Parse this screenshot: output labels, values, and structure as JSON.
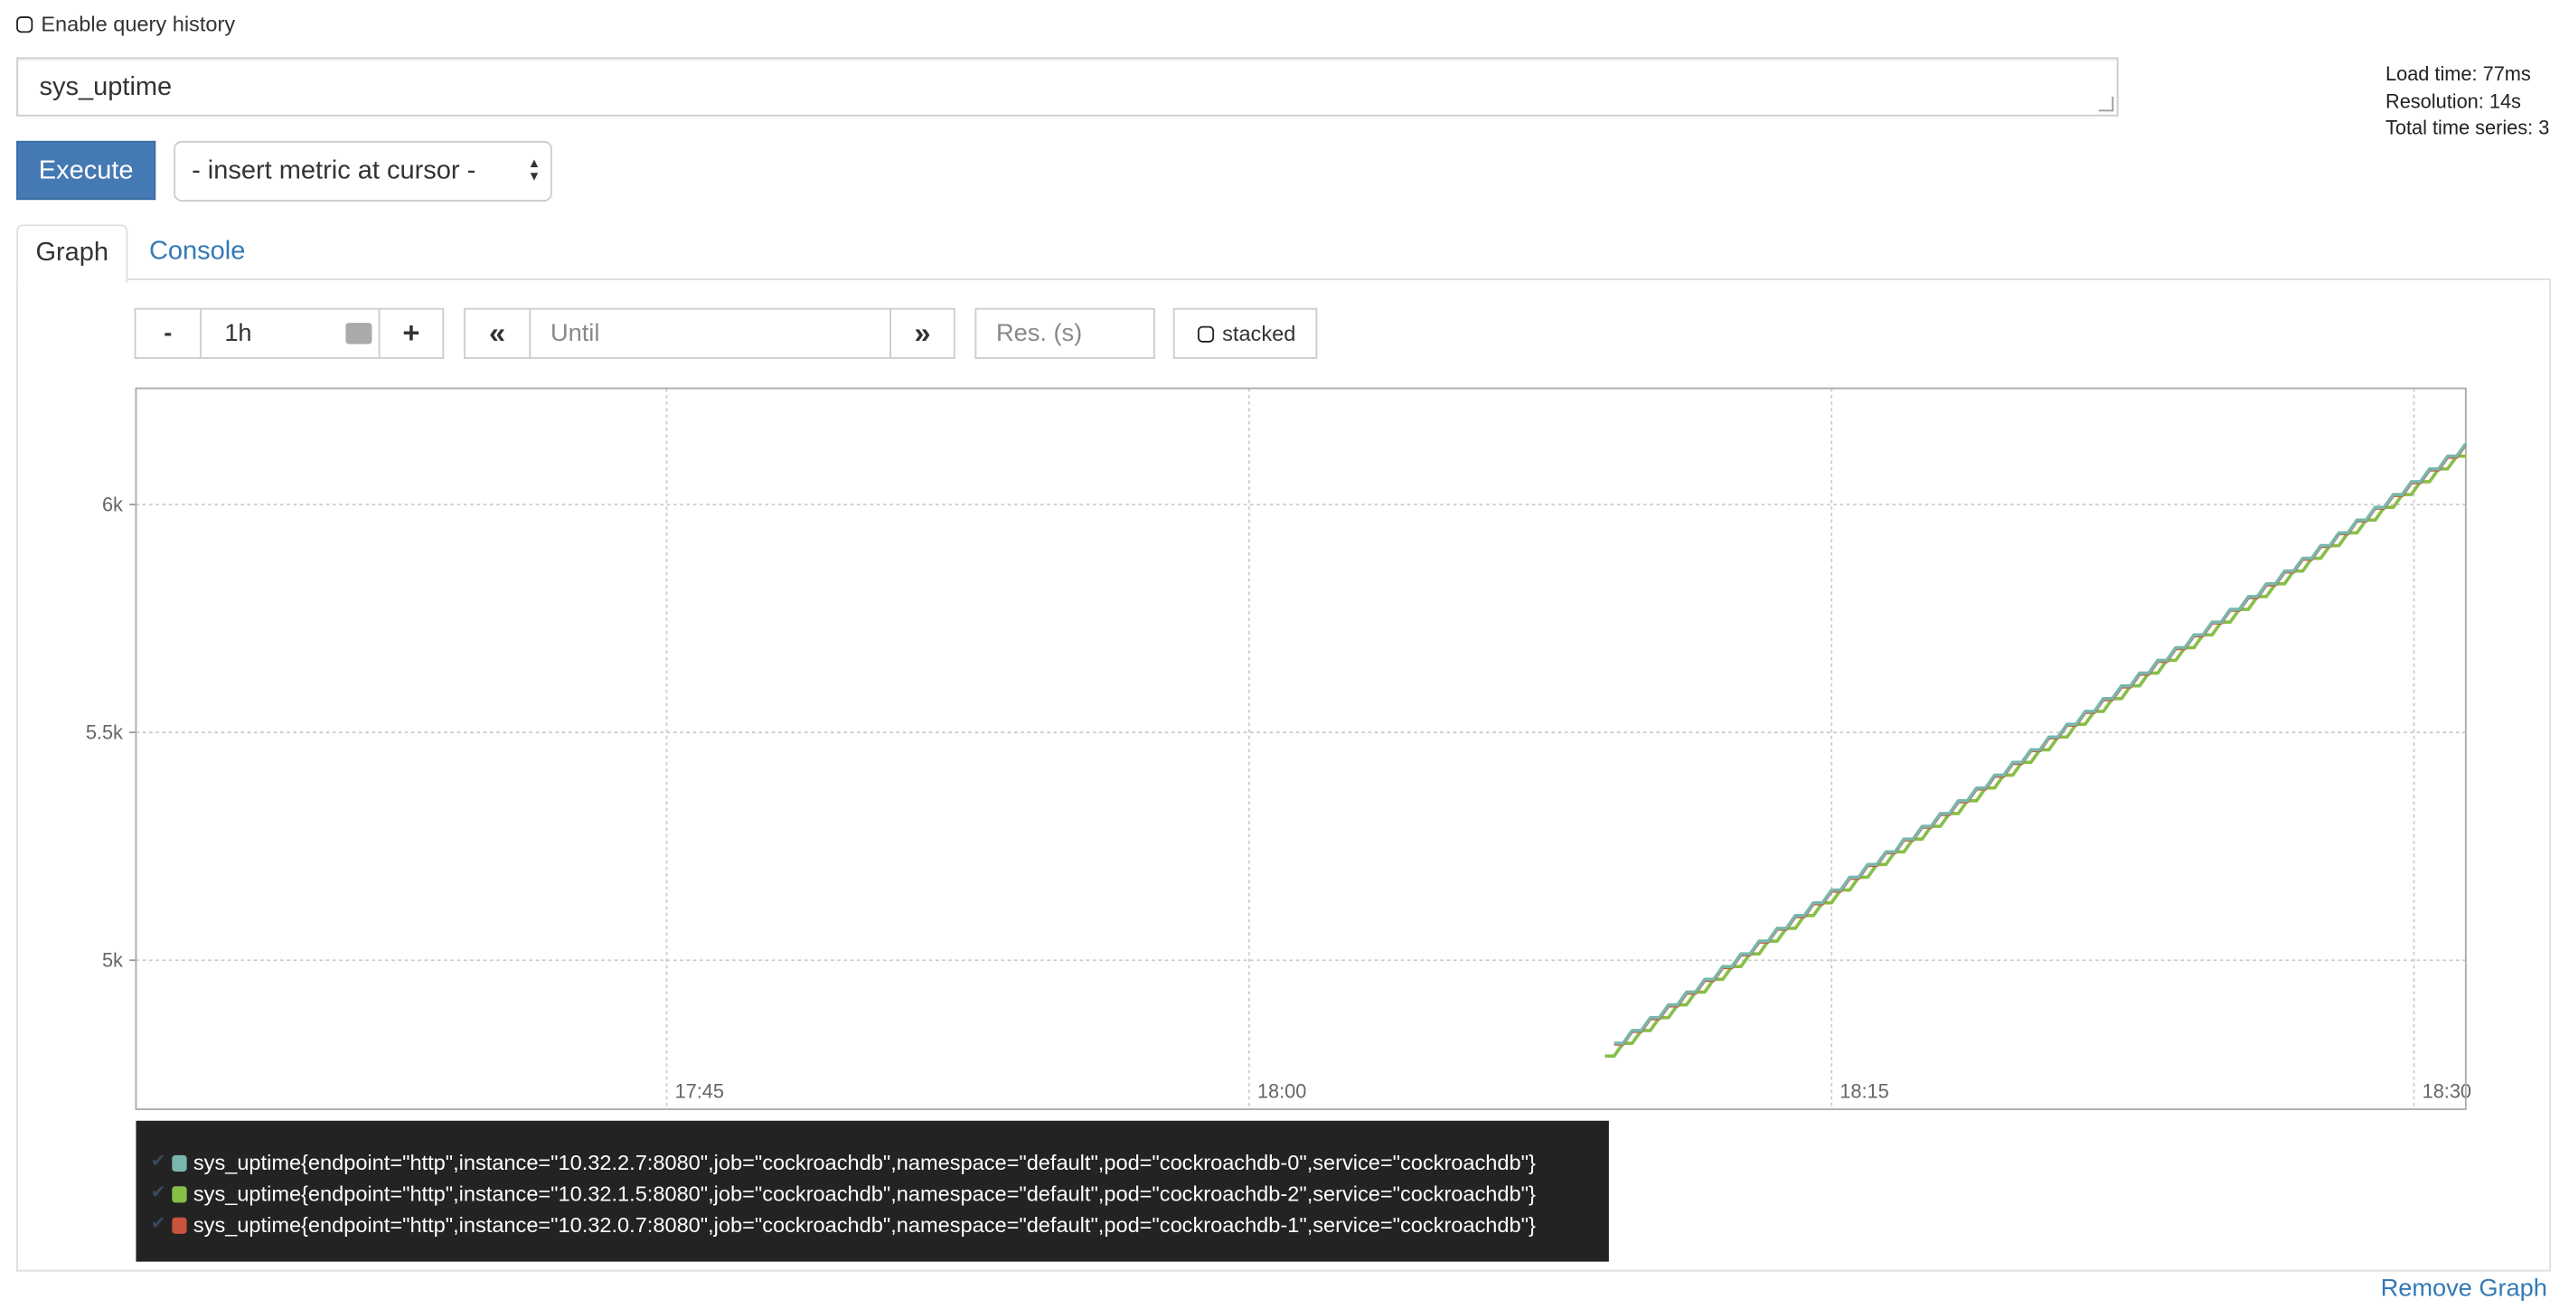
{
  "query_history": {
    "label": "Enable query history",
    "checked": false
  },
  "query": {
    "value": "sys_uptime"
  },
  "stats": {
    "load_time": "Load time: 77ms",
    "resolution": "Resolution: 14s",
    "total_series": "Total time series: 3"
  },
  "execute_label": "Execute",
  "metric_select": {
    "selected": "- insert metric at cursor -"
  },
  "tabs": [
    {
      "label": "Graph",
      "active": true
    },
    {
      "label": "Console",
      "active": false
    }
  ],
  "controls": {
    "minus": "-",
    "range": "1h",
    "plus": "+",
    "back": "«",
    "until_placeholder": "Until",
    "forward": "»",
    "res_placeholder": "Res. (s)",
    "stacked_label": "stacked"
  },
  "chart_data": {
    "type": "line",
    "x_range": [
      "17:31:20",
      "18:31:20"
    ],
    "xticks": [
      "17:45",
      "18:00",
      "18:15",
      "18:30"
    ],
    "yticks": [
      "5k",
      "5.5k",
      "6k"
    ],
    "ytick_values": [
      5000,
      5500,
      6000
    ],
    "ylim": [
      4673,
      6255
    ],
    "grid": true,
    "start": "18:09:10",
    "step_s": 14,
    "series": [
      {
        "name": "sys_uptime{endpoint=\"http\",instance=\"10.32.2.7:8080\",job=\"cockroachdb\",namespace=\"default\",pod=\"cockroachdb-0\",service=\"cockroachdb\"}",
        "color": "#79b6ab",
        "values": [
          null,
          4818,
          4818,
          4846,
          4846,
          4874,
          4874,
          4902,
          4902,
          4930,
          4930,
          4958,
          4958,
          4986,
          4986,
          5014,
          5014,
          5042,
          5042,
          5070,
          5070,
          5098,
          5098,
          5126,
          5126,
          5154,
          5154,
          5182,
          5182,
          5210,
          5210,
          5238,
          5238,
          5266,
          5266,
          5294,
          5294,
          5322,
          5322,
          5350,
          5350,
          5378,
          5378,
          5406,
          5406,
          5434,
          5434,
          5462,
          5462,
          5490,
          5490,
          5518,
          5518,
          5546,
          5546,
          5574,
          5574,
          5602,
          5602,
          5630,
          5630,
          5658,
          5658,
          5686,
          5686,
          5714,
          5714,
          5742,
          5742,
          5770,
          5770,
          5798,
          5798,
          5826,
          5826,
          5854,
          5854,
          5882,
          5882,
          5910,
          5910,
          5938,
          5938,
          5966,
          5966,
          5994,
          5994,
          6022,
          6022,
          6050,
          6050,
          6078,
          6078,
          6106,
          6106,
          6134
        ]
      },
      {
        "name": "sys_uptime{endpoint=\"http\",instance=\"10.32.1.5:8080\",job=\"cockroachdb\",namespace=\"default\",pod=\"cockroachdb-2\",service=\"cockroachdb\"}",
        "color": "#86bf46",
        "values": [
          4790,
          4790,
          4818,
          4818,
          4846,
          4846,
          4874,
          4874,
          4902,
          4902,
          4930,
          4930,
          4958,
          4958,
          4986,
          4986,
          5014,
          5014,
          5042,
          5042,
          5070,
          5070,
          5098,
          5098,
          5126,
          5126,
          5154,
          5154,
          5182,
          5182,
          5210,
          5210,
          5238,
          5238,
          5266,
          5266,
          5294,
          5294,
          5322,
          5322,
          5350,
          5350,
          5378,
          5378,
          5406,
          5406,
          5434,
          5434,
          5462,
          5462,
          5490,
          5490,
          5518,
          5518,
          5546,
          5546,
          5574,
          5574,
          5602,
          5602,
          5630,
          5630,
          5658,
          5658,
          5686,
          5686,
          5714,
          5714,
          5742,
          5742,
          5770,
          5770,
          5798,
          5798,
          5826,
          5826,
          5854,
          5854,
          5882,
          5882,
          5910,
          5910,
          5938,
          5938,
          5966,
          5966,
          5994,
          5994,
          6022,
          6022,
          6050,
          6050,
          6078,
          6078,
          6106,
          6106
        ]
      },
      {
        "name": "sys_uptime{endpoint=\"http\",instance=\"10.32.0.7:8080\",job=\"cockroachdb\",namespace=\"default\",pod=\"cockroachdb-1\",service=\"cockroachdb\"}",
        "color": "#c9543d",
        "values": [
          null,
          4816,
          4816,
          4844,
          4844,
          4872,
          4872,
          4900,
          4900,
          4928,
          4928,
          4956,
          4956,
          4984,
          4984,
          5012,
          5012,
          5040,
          5040,
          5068,
          5068,
          5096,
          5096,
          5124,
          5124,
          5152,
          5152,
          5180,
          5180,
          5208,
          5208,
          5236,
          5236,
          5264,
          5264,
          5292,
          5292,
          5320,
          5320,
          5348,
          5348,
          5376,
          5376,
          5404,
          5404,
          5432,
          5432,
          5460,
          5460,
          5488,
          5488,
          5516,
          5516,
          5544,
          5544,
          5572,
          5572,
          5600,
          5600,
          5628,
          5628,
          5656,
          5656,
          5684,
          5684,
          5712,
          5712,
          5740,
          5740,
          5768,
          5768,
          5796,
          5796,
          5824,
          5824,
          5852,
          5852,
          5880,
          5880,
          5908,
          5908,
          5936,
          5936,
          5964,
          5964,
          5992,
          5992,
          6020,
          6020,
          6048,
          6048,
          6076,
          6076,
          6104,
          6104,
          6132
        ]
      }
    ]
  },
  "remove_graph": "Remove Graph"
}
